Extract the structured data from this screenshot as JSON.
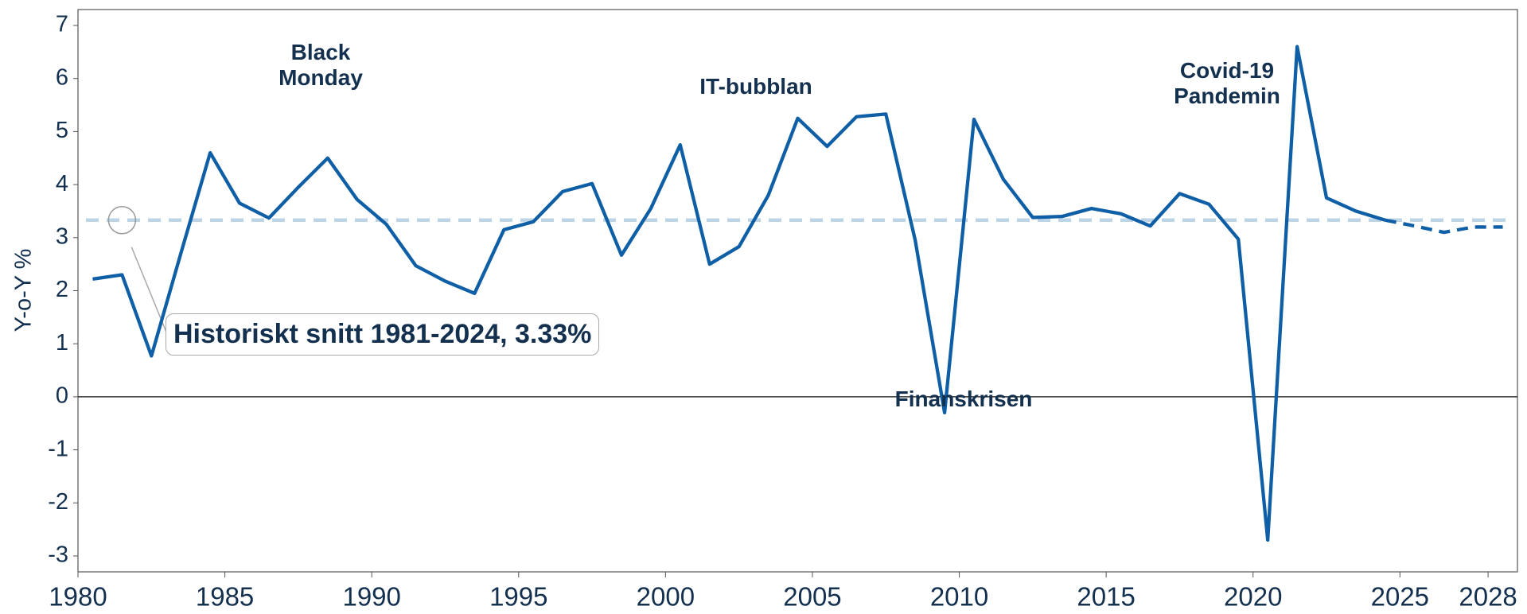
{
  "chart_data": {
    "type": "line",
    "ylabel": "Y-o-Y %",
    "xlim": [
      1980,
      2029
    ],
    "ylim": [
      -3.3,
      7.3
    ],
    "xticks": [
      1980,
      1985,
      1990,
      1995,
      2000,
      2005,
      2010,
      2015,
      2020,
      2025,
      2028
    ],
    "yticks": [
      -3,
      -2,
      -1,
      0,
      1,
      2,
      3,
      4,
      5,
      6,
      7
    ],
    "zero_line": true,
    "series": [
      {
        "color": "#0f5fa6",
        "style": "solid",
        "x": [
          1980.5,
          1981.5,
          1982.5,
          1983.5,
          1984.5,
          1985.5,
          1986.5,
          1987.5,
          1988.5,
          1989.5,
          1990.5,
          1991.5,
          1992.5,
          1993.5,
          1994.5,
          1995.5,
          1996.5,
          1997.5,
          1998.5,
          1999.5,
          2000.5,
          2001.5,
          2002.5,
          2003.5,
          2004.5,
          2005.5,
          2006.5,
          2007.5,
          2008.5,
          2009.5,
          2010.5,
          2011.5,
          2012.5,
          2013.5,
          2014.5,
          2015.5,
          2016.5,
          2017.5,
          2018.5,
          2019.5,
          2020.5,
          2021.5,
          2022.5,
          2023.5,
          2024.5
        ],
        "values": [
          2.22,
          2.3,
          0.77,
          2.7,
          4.6,
          3.65,
          3.37,
          3.95,
          4.5,
          3.72,
          3.25,
          2.47,
          2.18,
          1.95,
          3.15,
          3.3,
          3.87,
          4.02,
          2.67,
          3.55,
          4.75,
          2.5,
          2.83,
          3.8,
          5.25,
          4.72,
          5.28,
          5.33,
          2.95,
          -0.3,
          5.23,
          4.1,
          3.38,
          3.4,
          3.55,
          3.45,
          3.22,
          3.83,
          3.63,
          2.97,
          -2.7,
          6.6,
          3.75,
          3.5,
          3.33
        ]
      },
      {
        "color": "#0f5fa6",
        "style": "dashed",
        "x": [
          2024.5,
          2025.5,
          2026.5,
          2027.5,
          2028.5
        ],
        "values": [
          3.33,
          3.22,
          3.1,
          3.2,
          3.2
        ]
      }
    ],
    "average": {
      "value": 3.33,
      "color": "#bcd5e6",
      "label": "Historiskt snitt 1981-2024, 3.33%",
      "x": 1981.5
    },
    "annotations": [
      "Black Monday",
      "IT-bubblan",
      "Finanskrisen",
      "Covid-19 Pandemin"
    ]
  }
}
